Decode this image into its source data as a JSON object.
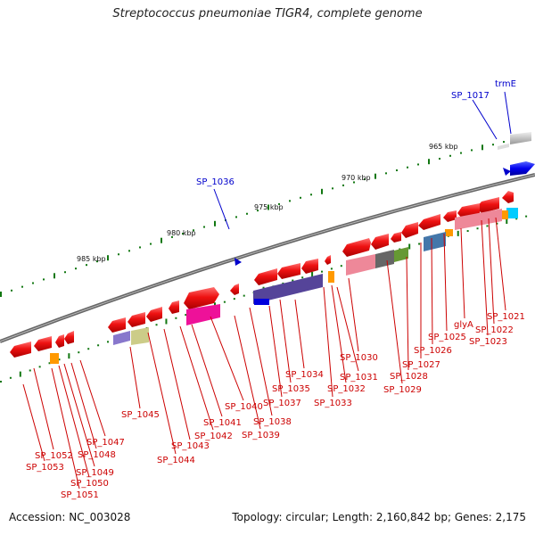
{
  "title": "Streptococcus pneumoniae TIGR4, complete genome",
  "footer": {
    "accession": "Accession: NC_003028",
    "summary": "Topology: circular; Length: 2,160,842 bp; Genes: 2,175"
  },
  "colors": {
    "forward_label": "#0000cc",
    "reverse_label": "#cc0000",
    "backbone": "#777777",
    "tick": "#117711"
  },
  "scale_labels": [
    "965 kbp",
    "970 kbp",
    "975 kbp",
    "980 kbp",
    "985 kbp"
  ],
  "forward_genes": [
    "trmE",
    "SP_1017",
    "SP_1036"
  ],
  "reverse_genes": [
    "SP_1021",
    "SP_1022",
    "SP_1023",
    "glyA",
    "SP_1025",
    "SP_1026",
    "SP_1027",
    "SP_1028",
    "SP_1029",
    "SP_1030",
    "SP_1031",
    "SP_1032",
    "SP_1033",
    "SP_1034",
    "SP_1035",
    "SP_1037",
    "SP_1038",
    "SP_1039",
    "SP_1040",
    "SP_1041",
    "SP_1042",
    "SP_1043",
    "SP_1044",
    "SP_1045",
    "SP_1047",
    "SP_1048",
    "SP_1049",
    "SP_1050",
    "SP_1051",
    "SP_1052",
    "SP_1053"
  ]
}
